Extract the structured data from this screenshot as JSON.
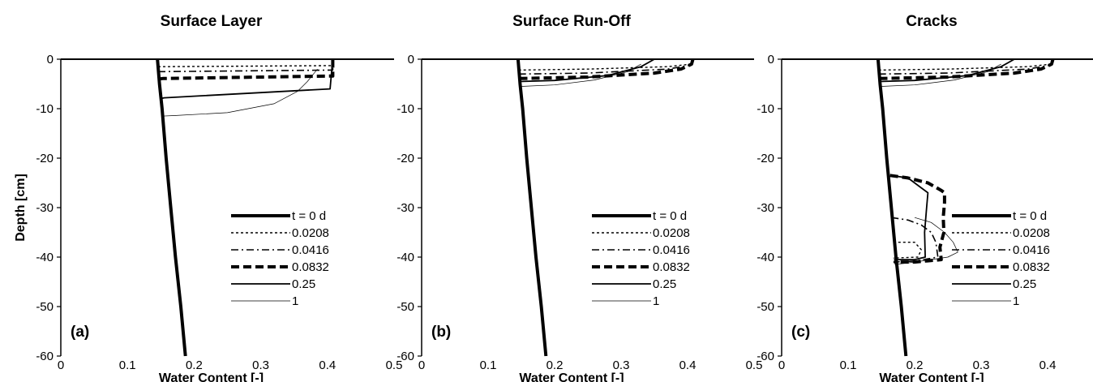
{
  "chart_data": [
    {
      "type": "line",
      "panel_label": "(a)",
      "title": "Surface Layer",
      "xlabel": "Water Content [-]",
      "ylabel": "Depth [cm]",
      "xlim": [
        0,
        0.5
      ],
      "ylim": [
        -60,
        0
      ],
      "xticks": [
        "0",
        "0.1",
        "0.2",
        "0.3",
        "0.4",
        "0.5"
      ],
      "yticks": [
        "0",
        "-10",
        "-20",
        "-30",
        "-40",
        "-50",
        "-60"
      ],
      "grid": false,
      "legend_position": "bottom-right",
      "series": [
        {
          "name": "t = 0 d",
          "style": "thick",
          "x": [
            0.187,
            0.18,
            0.172,
            0.165,
            0.158,
            0.152,
            0.148,
            0.145
          ],
          "y": [
            -60,
            -50,
            -40,
            -30,
            -20,
            -10,
            -5,
            0
          ]
        },
        {
          "name": "0.0208",
          "style": "dotted",
          "x": [
            0.146,
            0.152,
            0.408,
            0.408
          ],
          "y": [
            -1.5,
            -1.5,
            -1.3,
            0
          ]
        },
        {
          "name": "0.0416",
          "style": "dashdot",
          "x": [
            0.146,
            0.152,
            0.408,
            0.408
          ],
          "y": [
            -2.5,
            -2.5,
            -2.2,
            0
          ]
        },
        {
          "name": "0.0832",
          "style": "dashed",
          "x": [
            0.147,
            0.153,
            0.408,
            0.408
          ],
          "y": [
            -4,
            -3.9,
            -3.4,
            0
          ]
        },
        {
          "name": "0.25",
          "style": "solid",
          "x": [
            0.149,
            0.155,
            0.404,
            0.406,
            0.408
          ],
          "y": [
            -8,
            -7.8,
            -6,
            -3,
            0
          ]
        },
        {
          "name": "1",
          "style": "thin",
          "x": [
            0.151,
            0.17,
            0.25,
            0.32,
            0.355,
            0.37,
            0.385
          ],
          "y": [
            -11.5,
            -11.4,
            -10.8,
            -9,
            -6.5,
            -4.5,
            -2
          ]
        }
      ]
    },
    {
      "type": "line",
      "panel_label": "(b)",
      "title": "Surface Run-Off",
      "xlabel": "Water Content [-]",
      "ylabel": "",
      "xlim": [
        0,
        0.5
      ],
      "ylim": [
        -60,
        0
      ],
      "xticks": [
        "0",
        "0.1",
        "0.2",
        "0.3",
        "0.4",
        "0.5"
      ],
      "yticks": [
        "0",
        "-10",
        "-20",
        "-30",
        "-40",
        "-50",
        "-60"
      ],
      "grid": false,
      "legend_position": "bottom-right",
      "series": [
        {
          "name": "t = 0 d",
          "style": "thick",
          "x": [
            0.187,
            0.18,
            0.172,
            0.165,
            0.158,
            0.152,
            0.148,
            0.145
          ],
          "y": [
            -60,
            -50,
            -40,
            -30,
            -20,
            -10,
            -5,
            0
          ]
        },
        {
          "name": "0.0208",
          "style": "dotted",
          "x": [
            0.146,
            0.25,
            0.37,
            0.405,
            0.408
          ],
          "y": [
            -2.2,
            -2,
            -1.5,
            -1,
            0
          ]
        },
        {
          "name": "0.0416",
          "style": "dashdot",
          "x": [
            0.146,
            0.25,
            0.37,
            0.405,
            0.408
          ],
          "y": [
            -3,
            -2.8,
            -2,
            -1.2,
            0
          ]
        },
        {
          "name": "0.0832",
          "style": "dashed",
          "x": [
            0.147,
            0.25,
            0.35,
            0.39,
            0.406,
            0.408
          ],
          "y": [
            -3.9,
            -3.6,
            -2.8,
            -2,
            -1,
            0
          ]
        },
        {
          "name": "0.25",
          "style": "solid",
          "x": [
            0.147,
            0.2,
            0.28,
            0.33,
            0.35
          ],
          "y": [
            -4.5,
            -4.3,
            -3.3,
            -1.5,
            0
          ]
        },
        {
          "name": "1",
          "style": "thin",
          "x": [
            0.15,
            0.2,
            0.26,
            0.31,
            0.33
          ],
          "y": [
            -5.5,
            -5.2,
            -4.2,
            -2.5,
            -1
          ]
        }
      ]
    },
    {
      "type": "line",
      "panel_label": "(c)",
      "title": "Cracks",
      "xlabel": "Water Content [-]",
      "ylabel": "",
      "xlim": [
        0,
        0.5
      ],
      "ylim": [
        -60,
        0
      ],
      "xticks": [
        "0",
        "0.1",
        "0.2",
        "0.3",
        "0.4",
        "0.5"
      ],
      "yticks": [
        "0",
        "-10",
        "-20",
        "-30",
        "-40",
        "-50",
        "-60"
      ],
      "grid": false,
      "legend_position": "bottom-right",
      "series": [
        {
          "name": "t = 0 d",
          "style": "thick",
          "x": [
            0.187,
            0.18,
            0.172,
            0.165,
            0.158,
            0.152,
            0.148,
            0.145
          ],
          "y": [
            -60,
            -50,
            -40,
            -30,
            -20,
            -10,
            -5,
            0
          ]
        },
        {
          "name": "0.0208",
          "style": "dotted",
          "x": [
            0.146,
            0.25,
            0.37,
            0.405,
            0.408,
            null,
            0.168,
            0.2,
            0.21,
            0.205,
            0.168
          ],
          "y": [
            -2.2,
            -2,
            -1.5,
            -1,
            0,
            null,
            -37,
            -37,
            -38.5,
            -40,
            -40.2
          ]
        },
        {
          "name": "0.0416",
          "style": "dashdot",
          "x": [
            0.146,
            0.25,
            0.37,
            0.405,
            0.408,
            null,
            0.165,
            0.19,
            0.21,
            0.225,
            0.232,
            0.235,
            0.2,
            0.168
          ],
          "y": [
            -3,
            -2.8,
            -2,
            -1.2,
            0,
            null,
            -32,
            -32.5,
            -33.5,
            -35,
            -37,
            -40,
            -40.8,
            -41
          ]
        },
        {
          "name": "0.0832",
          "style": "dashed",
          "x": [
            0.147,
            0.25,
            0.35,
            0.39,
            0.406,
            0.408,
            null,
            0.163,
            0.19,
            0.22,
            0.24,
            0.245,
            0.245,
            0.243,
            0.244,
            0.238,
            0.24,
            0.2,
            0.169
          ],
          "y": [
            -3.9,
            -3.6,
            -2.8,
            -2,
            -1,
            0,
            null,
            -23.5,
            -24,
            -25,
            -26.5,
            -27,
            -29,
            -32,
            -35,
            -38,
            -40.5,
            -41,
            -41
          ]
        },
        {
          "name": "0.25",
          "style": "solid",
          "x": [
            0.147,
            0.2,
            0.28,
            0.33,
            0.35,
            null,
            0.164,
            0.19,
            0.21,
            0.22,
            0.218,
            0.215,
            0.216,
            0.2,
            0.169
          ],
          "y": [
            -4.5,
            -4.3,
            -3.3,
            -1.5,
            0,
            null,
            -23.5,
            -24,
            -26,
            -27,
            -30,
            -35,
            -40,
            -40.5,
            -40.5
          ]
        },
        {
          "name": "1",
          "style": "thin",
          "x": [
            0.15,
            0.2,
            0.26,
            0.31,
            0.33,
            null,
            0.2,
            0.225,
            0.245,
            0.258,
            0.265,
            0.25,
            0.2,
            0.17
          ],
          "y": [
            -5.5,
            -5.2,
            -4.2,
            -2.5,
            -1,
            null,
            -32,
            -33,
            -35,
            -37,
            -39,
            -40,
            -41,
            -41.5
          ]
        }
      ]
    }
  ]
}
